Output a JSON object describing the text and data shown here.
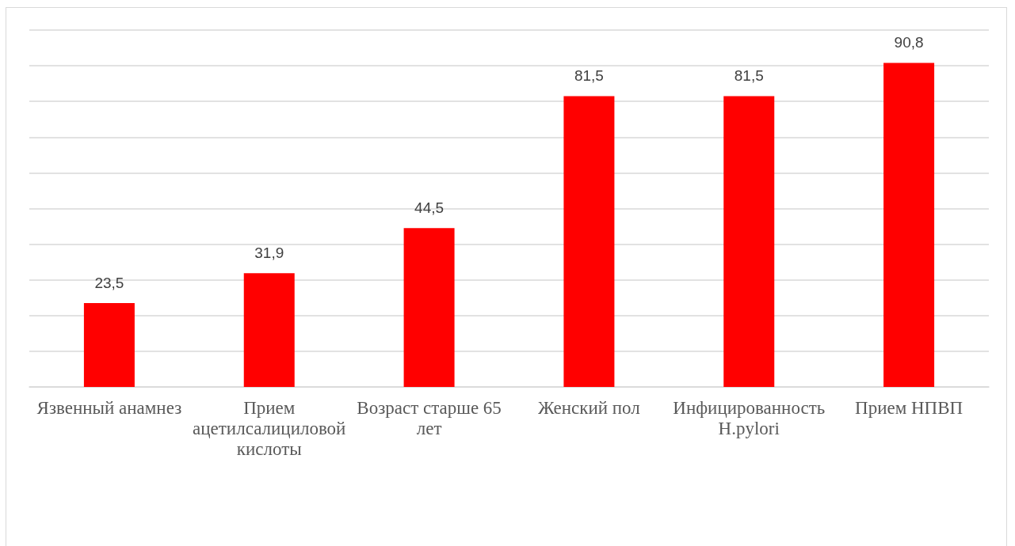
{
  "chart_data": {
    "type": "bar",
    "categories": [
      "Язвенный анамнез",
      "Прием ацетилсалициловой кислоты",
      "Возраст старше 65 лет",
      "Женский пол",
      "Инфицированность H.pylori",
      "Прием НПВП"
    ],
    "values": [
      23.5,
      31.9,
      44.5,
      81.5,
      81.5,
      90.8
    ],
    "value_labels": [
      "23,5",
      "31,9",
      "44,5",
      "81,5",
      "81,5",
      "90,8"
    ],
    "color": "#ff0000",
    "ylim": [
      0,
      100
    ],
    "yticks": [
      {
        "value": 0,
        "label": null
      },
      {
        "value": 10,
        "label": null
      },
      {
        "value": 20,
        "label": null
      },
      {
        "value": 30,
        "label": null
      },
      {
        "value": 40,
        "label": null
      },
      {
        "value": 50,
        "label": null
      },
      {
        "value": 60,
        "label": null
      },
      {
        "value": 70,
        "label": null
      },
      {
        "value": 80,
        "label": null
      },
      {
        "value": 90,
        "label": null
      },
      {
        "value": 100,
        "label": null
      }
    ],
    "grid": "y",
    "tick_labels": "x"
  }
}
